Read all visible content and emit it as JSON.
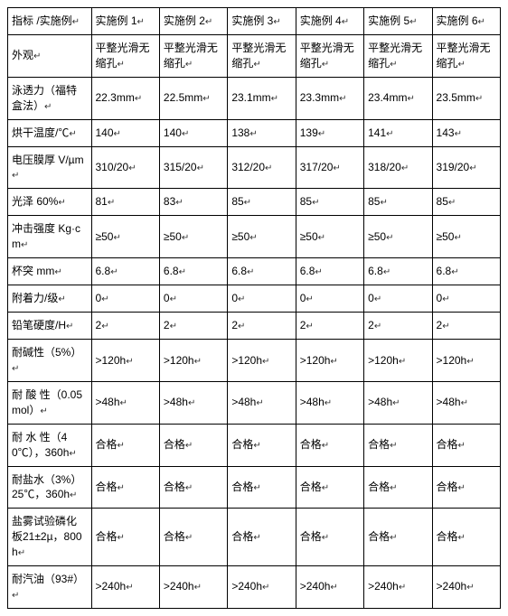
{
  "marker": "↵",
  "columns": [
    "指标 /实施例",
    "实施例 1",
    "实施例 2",
    "实施例 3",
    "实施例 4",
    "实施例 5",
    "实施例 6"
  ],
  "rows": [
    {
      "label": "外观",
      "cells": [
        "平整光滑无缩孔",
        "平整光滑无缩孔",
        "平整光滑无缩孔",
        "平整光滑无缩孔",
        "平整光滑无缩孔",
        "平整光滑无缩孔"
      ]
    },
    {
      "label": "泳透力（福特盒法）",
      "cells": [
        "22.3mm",
        "22.5mm",
        "23.1mm",
        "23.3mm",
        "23.4mm",
        "23.5mm"
      ]
    },
    {
      "label": "烘干温度/℃",
      "cells": [
        "140",
        "140",
        "138",
        "139",
        "141",
        "143"
      ]
    },
    {
      "label": "电压膜厚 V/µm",
      "cells": [
        "310/20",
        "315/20",
        "312/20",
        "317/20",
        "318/20",
        "319/20"
      ]
    },
    {
      "label": "光泽 60%",
      "cells": [
        "81",
        "83",
        "85",
        "85",
        "85",
        "85"
      ]
    },
    {
      "label": "冲击强度 Kg·cm",
      "cells": [
        "≥50",
        "≥50",
        "≥50",
        "≥50",
        "≥50",
        "≥50"
      ]
    },
    {
      "label": "杯突 mm",
      "cells": [
        "6.8",
        "6.8",
        "6.8",
        "6.8",
        "6.8",
        "6.8"
      ]
    },
    {
      "label": "附着力/级",
      "cells": [
        "0",
        "0",
        "0",
        "0",
        "0",
        "0"
      ]
    },
    {
      "label": "铅笔硬度/H",
      "cells": [
        "2",
        "2",
        "2",
        "2",
        "2",
        "2"
      ]
    },
    {
      "label": "耐碱性（5%）",
      "cells": [
        ">120h",
        ">120h",
        ">120h",
        ">120h",
        ">120h",
        ">120h"
      ]
    },
    {
      "label": "耐 酸 性（0.05mol）",
      "cells": [
        ">48h",
        ">48h",
        ">48h",
        ">48h",
        ">48h",
        ">48h"
      ]
    },
    {
      "label": "耐 水 性（40℃），360h",
      "cells": [
        "合格",
        "合格",
        "合格",
        "合格",
        "合格",
        "合格"
      ]
    },
    {
      "label": "耐盐水（3%）25℃，360h",
      "cells": [
        "合格",
        "合格",
        "合格",
        "合格",
        "合格",
        "合格"
      ]
    },
    {
      "label": "盐雾试验磷化板21±2µ，800h",
      "cells": [
        "合格",
        "合格",
        "合格",
        "合格",
        "合格",
        "合格"
      ]
    },
    {
      "label": "耐汽油（93#）",
      "cells": [
        ">240h",
        ">240h",
        ">240h",
        ">240h",
        ">240h",
        ">240h"
      ]
    }
  ]
}
